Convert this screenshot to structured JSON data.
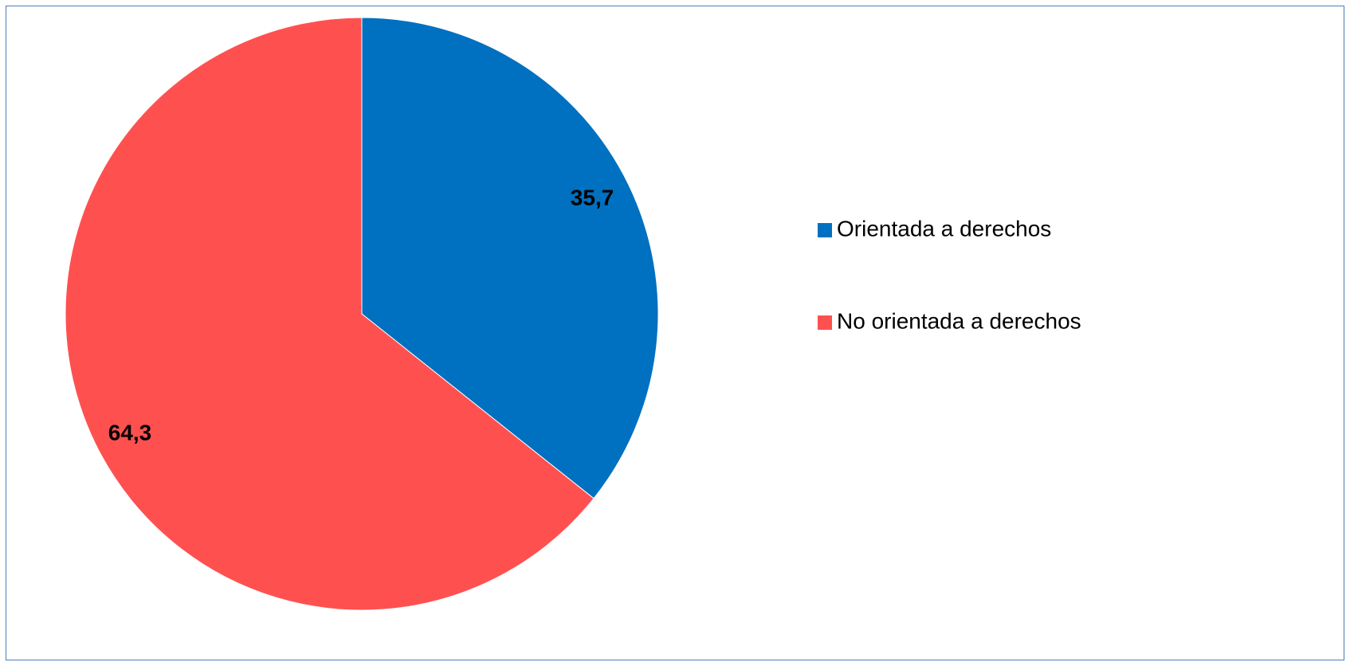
{
  "chart_data": {
    "type": "pie",
    "title": "",
    "series": [
      {
        "values": [
          35.7,
          64.3
        ],
        "labels": [
          "35,7",
          "64,3"
        ]
      }
    ],
    "categories": [
      "Orientada a derechos",
      "No orientada a derechos"
    ],
    "colors": [
      "#0070C0",
      "#FF5050"
    ],
    "start_angle_deg": 0,
    "direction": "clockwise",
    "legend_position": "right",
    "border_color": "#4A7EBA"
  }
}
